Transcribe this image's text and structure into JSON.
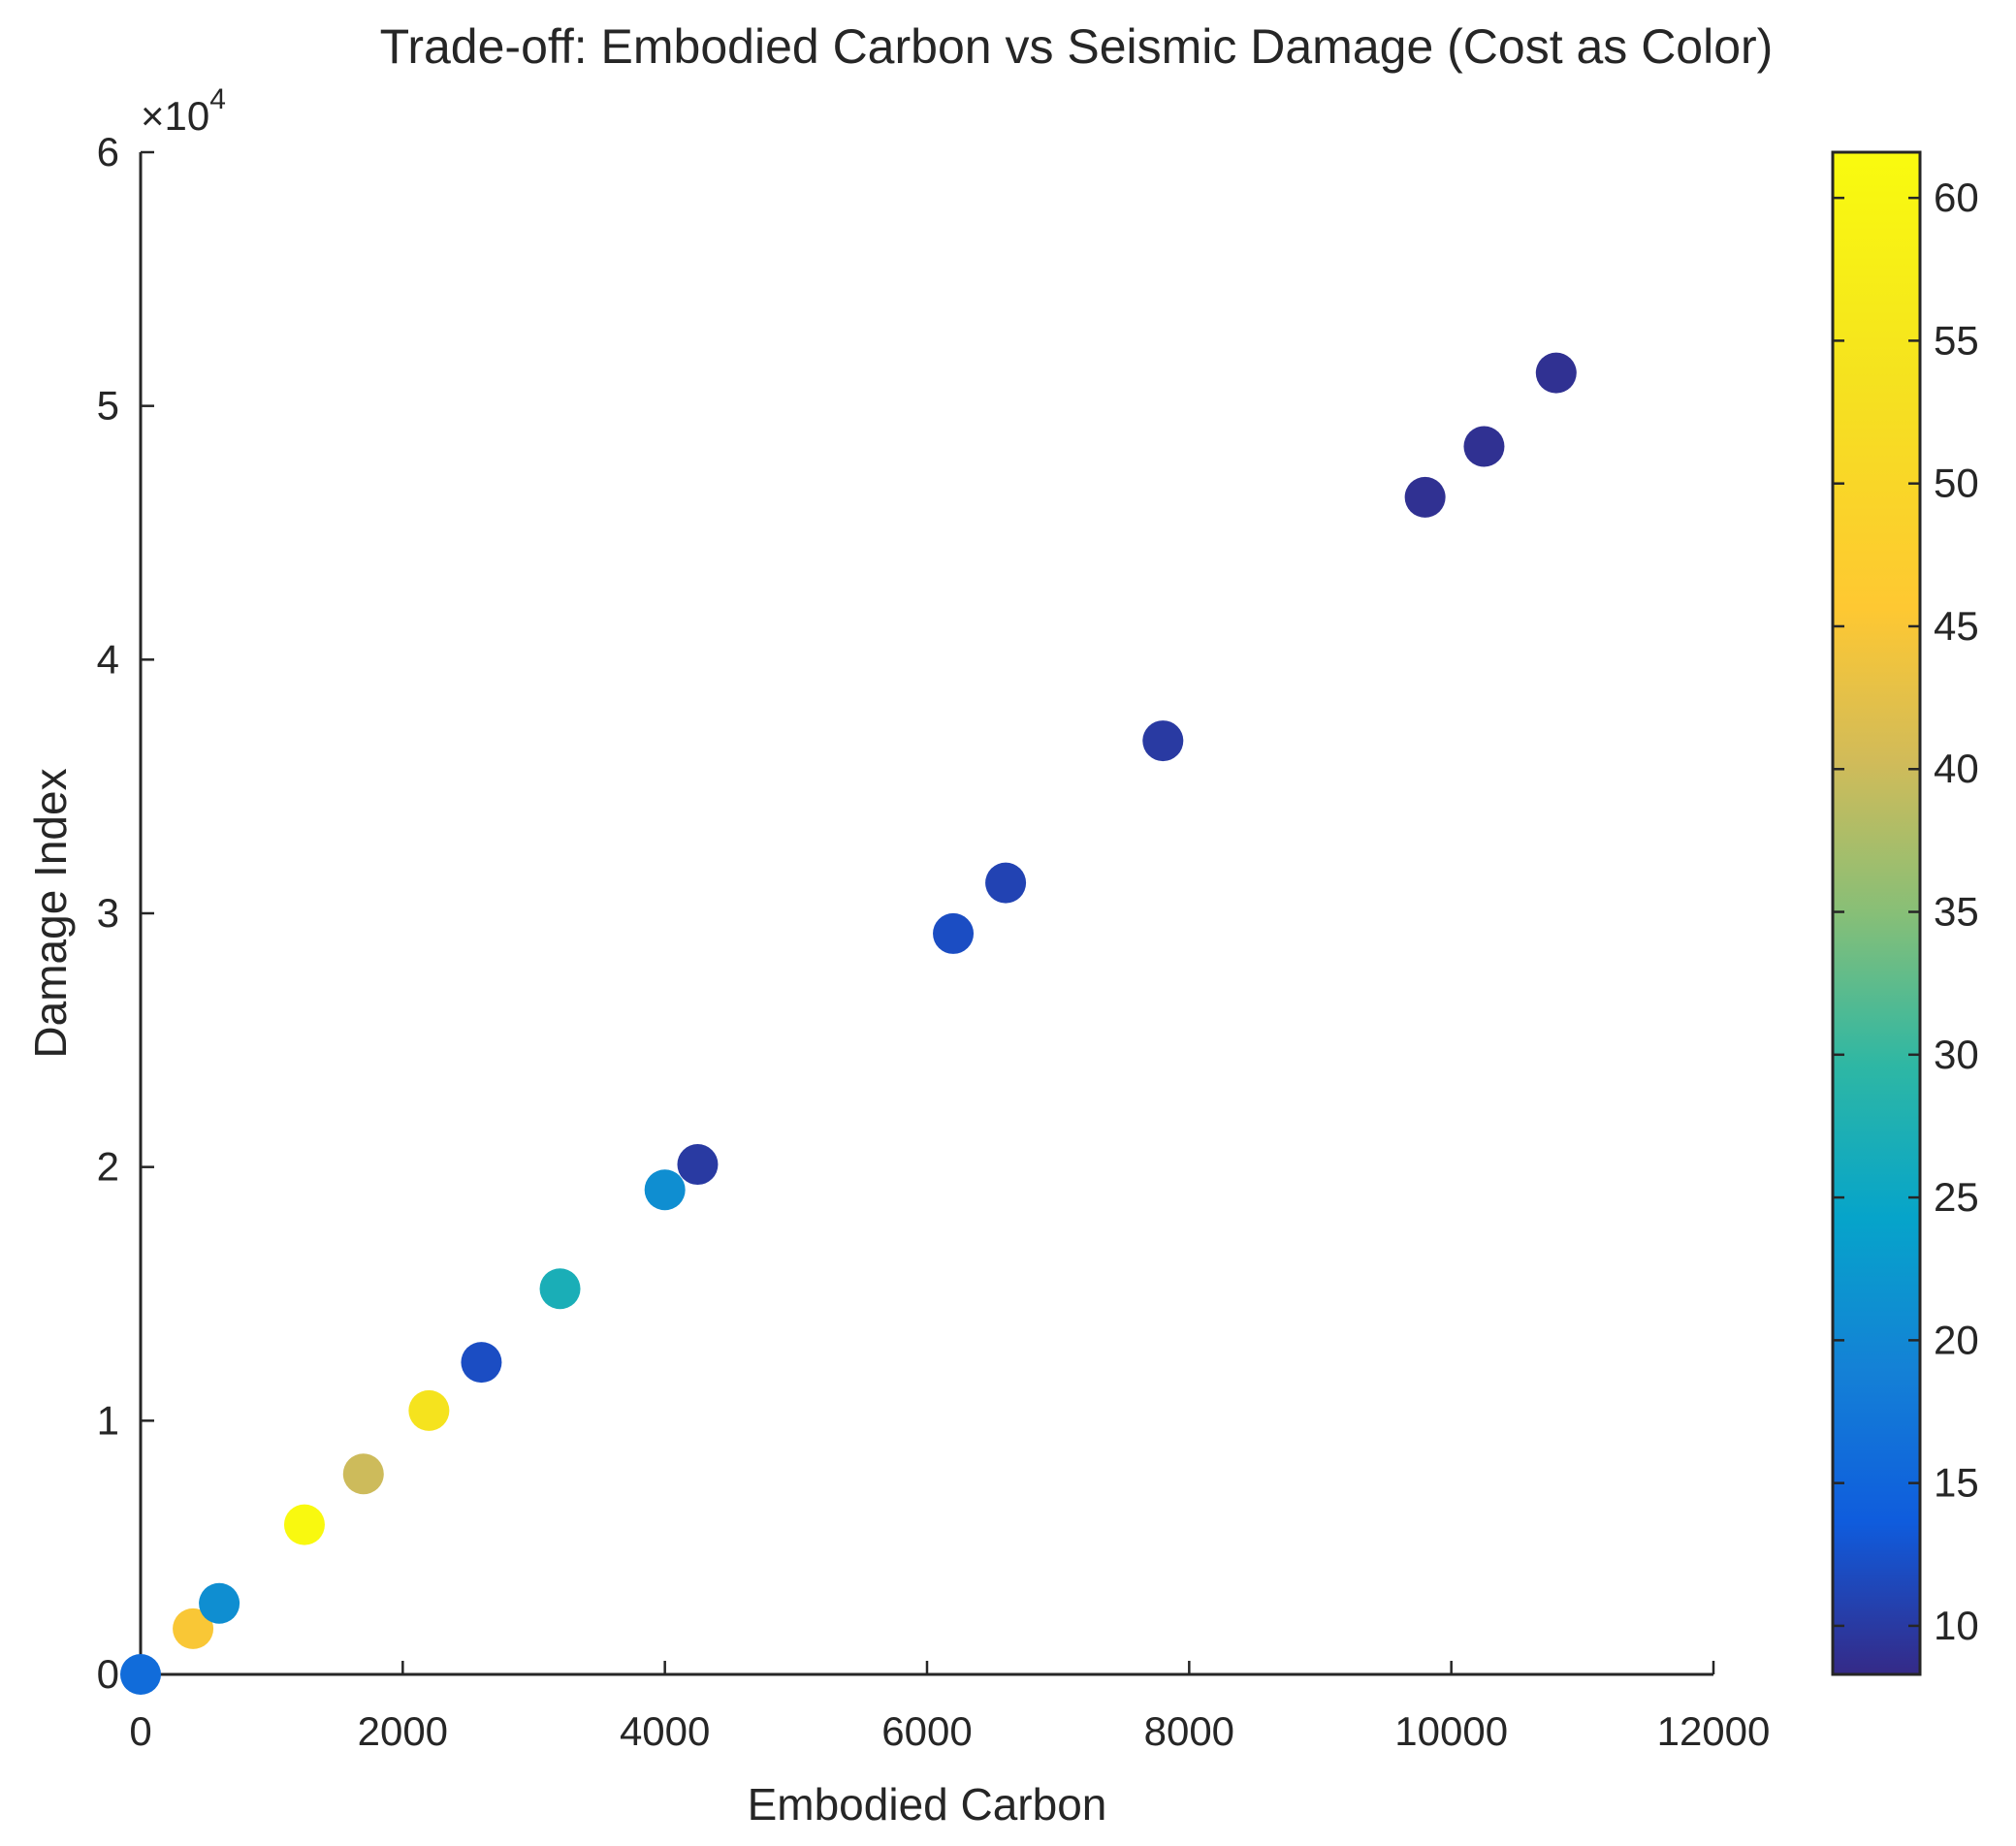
{
  "chart_data": {
    "type": "scatter",
    "title": "Trade-off: Embodied Carbon vs Seismic Damage (Cost as Color)",
    "xlabel": "Embodied Carbon",
    "ylabel": "Damage Index",
    "xlim": [
      0,
      12000
    ],
    "ylim": [
      0,
      60000
    ],
    "xticks": [
      0,
      2000,
      4000,
      6000,
      8000,
      10000,
      12000
    ],
    "xtick_labels": [
      "0",
      "2000",
      "4000",
      "6000",
      "8000",
      "10000",
      "12000"
    ],
    "yticks": [
      0,
      10000,
      20000,
      30000,
      40000,
      50000,
      60000
    ],
    "ytick_labels": [
      "0",
      "1",
      "2",
      "3",
      "4",
      "5",
      "6"
    ],
    "y_exponent_label": "×10",
    "y_exponent_power": "4",
    "colorbar": {
      "label": "",
      "range": [
        8.3,
        61.6
      ],
      "ticks": [
        10,
        15,
        20,
        25,
        30,
        35,
        40,
        45,
        50,
        55,
        60
      ],
      "tick_labels": [
        "10",
        "15",
        "20",
        "25",
        "30",
        "35",
        "40",
        "45",
        "50",
        "55",
        "60"
      ],
      "colormap": "parula"
    },
    "grid": false,
    "legend": "none",
    "points": [
      {
        "x": 0,
        "y": 0,
        "c": 16
      },
      {
        "x": 400,
        "y": 1800,
        "c": 45
      },
      {
        "x": 600,
        "y": 2800,
        "c": 21
      },
      {
        "x": 1250,
        "y": 5900,
        "c": 61
      },
      {
        "x": 1700,
        "y": 7900,
        "c": 40
      },
      {
        "x": 2200,
        "y": 10400,
        "c": 54
      },
      {
        "x": 2600,
        "y": 12300,
        "c": 12
      },
      {
        "x": 3200,
        "y": 15200,
        "c": 27
      },
      {
        "x": 4000,
        "y": 19100,
        "c": 21
      },
      {
        "x": 4250,
        "y": 20100,
        "c": 10
      },
      {
        "x": 6200,
        "y": 29200,
        "c": 12
      },
      {
        "x": 6600,
        "y": 31200,
        "c": 11
      },
      {
        "x": 7800,
        "y": 36800,
        "c": 10
      },
      {
        "x": 9800,
        "y": 46400,
        "c": 9
      },
      {
        "x": 10250,
        "y": 48400,
        "c": 9
      },
      {
        "x": 10800,
        "y": 51300,
        "c": 9
      }
    ]
  }
}
